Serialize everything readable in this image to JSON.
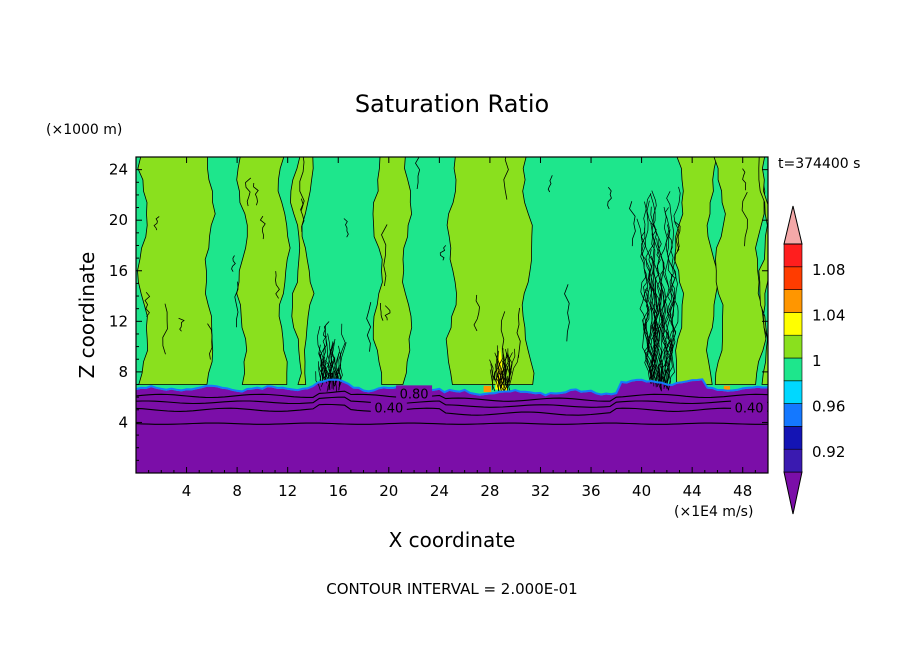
{
  "chart_data": {
    "type": "heatmap",
    "title": "Saturation Ratio",
    "xlabel": "X coordinate",
    "ylabel": "Z coordinate",
    "x_unit": "(×1E4 m/s)",
    "y_unit": "(×1000 m)",
    "time_label": "t=374400 s",
    "footer": "CONTOUR INTERVAL = 2.000E-01",
    "xlim": [
      0,
      50
    ],
    "ylim": [
      0,
      25
    ],
    "x_ticks": [
      4,
      8,
      12,
      16,
      20,
      24,
      28,
      32,
      36,
      40,
      44,
      48
    ],
    "y_ticks": [
      4,
      8,
      12,
      16,
      20,
      24
    ],
    "contour_labels": [
      {
        "text": "0.80",
        "x": 22,
        "z": 6.3
      },
      {
        "text": "0.40",
        "x": 20,
        "z": 5.2
      },
      {
        "text": "0.40",
        "x": 48.5,
        "z": 5.2
      }
    ],
    "levels": [
      0.92,
      0.96,
      1,
      1.04,
      1.08
    ],
    "colorbar": {
      "ticks": [
        "1.08",
        "1.04",
        "1",
        "0.96",
        "0.92"
      ],
      "colors": [
        "#7b0ea8",
        "#3a1ab0",
        "#1414b4",
        "#1478ff",
        "#00d8ff",
        "#1ee68c",
        "#8ae01e",
        "#ffff00",
        "#ff9600",
        "#ff3c00",
        "#ff1e1e",
        "#f4a8a8"
      ]
    },
    "field_colors": {
      "below": "#7b0ea8",
      "slightly_subsaturated": "#1ee68c",
      "saturated": "#8ae01e",
      "supersaturated_104": "#ffff00",
      "supersaturated_108": "#ff9600"
    },
    "saturated_columns": [
      [
        0.6,
        5.8
      ],
      [
        8.4,
        11.7
      ],
      [
        12.7,
        13.6
      ],
      [
        19.1,
        21.4
      ],
      [
        25.0,
        31.0
      ],
      [
        43.0,
        45.6
      ],
      [
        46.2,
        49.4
      ],
      [
        49.6,
        50.0
      ]
    ],
    "convective_towers": [
      {
        "x": 15.3,
        "top": 11.5
      },
      {
        "x": 41.4,
        "top": 22.5
      },
      {
        "x": 28.8,
        "top": 9.8
      }
    ]
  }
}
